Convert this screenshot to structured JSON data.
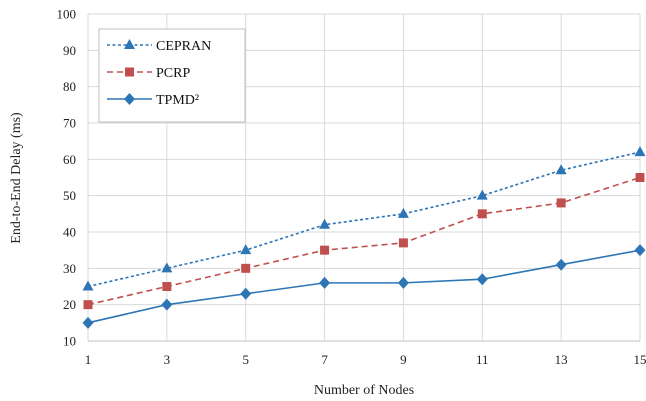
{
  "chart_data": {
    "type": "line",
    "title": "",
    "xlabel": "Number of Nodes",
    "ylabel": "End-to-End Delay (ms)",
    "x": [
      1,
      3,
      5,
      7,
      9,
      11,
      13,
      15
    ],
    "x_tick_labels": [
      "1",
      "3",
      "5",
      "7",
      "9",
      "11",
      "13",
      "15"
    ],
    "y_tick_labels": [
      "10",
      "20",
      "30",
      "40",
      "50",
      "60",
      "70",
      "80",
      "90",
      "100"
    ],
    "ylim": [
      10,
      100
    ],
    "grid": "vertical and horizontal",
    "legend_position": "top-left",
    "series": [
      {
        "name": "CEPRAN",
        "values": [
          25,
          30,
          35,
          42,
          45,
          50,
          57,
          62
        ],
        "color": "#2e75b6",
        "line_style": "dotted",
        "marker": "triangle"
      },
      {
        "name": "PCRP",
        "values": [
          20,
          25,
          30,
          35,
          37,
          45,
          48,
          55
        ],
        "color": "#c0504d",
        "line_style": "dashed",
        "marker": "square"
      },
      {
        "name": "TPMD²",
        "values": [
          15,
          20,
          23,
          26,
          26,
          27,
          31,
          35
        ],
        "color": "#2e75b6",
        "line_style": "solid",
        "marker": "diamond"
      }
    ]
  }
}
